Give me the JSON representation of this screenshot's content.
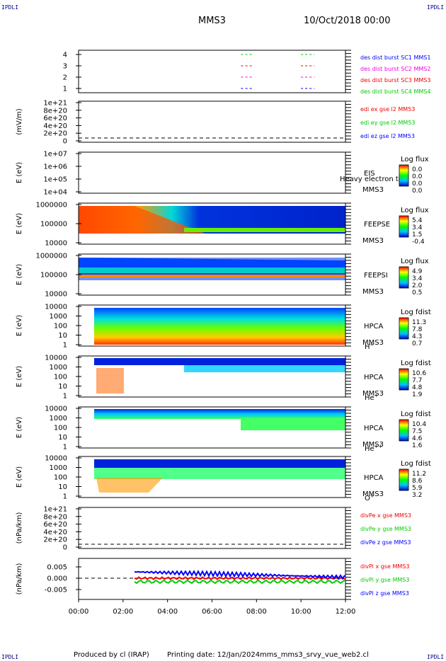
{
  "header": {
    "spacecraft": "MMS3",
    "date": "10/Oct/2018 00:00"
  },
  "corner_label": "IPDLI",
  "footer": {
    "produced_by": "Produced by cl (IRAP)",
    "printing_date": "Printing date: 12/Jan/2024",
    "filename": "mms_mms3_srvy_vue_web2.cl"
  },
  "chart_data": {
    "type": "multi-panel time series and spectrograms",
    "x_axis": {
      "range": [
        "00:00",
        "12:00"
      ],
      "ticks": [
        "00:00",
        "02:00",
        "04:00",
        "06:00",
        "08:00",
        "10:00",
        "12:00"
      ]
    },
    "panels": [
      {
        "id": "burst",
        "type": "scatter",
        "ylim": [
          0.5,
          4.5
        ],
        "yticks": [
          "4",
          "3",
          "2",
          "1"
        ],
        "series": [
          {
            "name": "des dist burst SC1 MMS1",
            "color": "#0000ff",
            "y": 1
          },
          {
            "name": "des dist burst SC2 MMS2",
            "color": "#ee00ee",
            "y": 2
          },
          {
            "name": "des dist burst SC3 MMS3",
            "color": "#ee0000",
            "y": 3
          },
          {
            "name": "des dist burst SC4 MMS4",
            "color": "#00cc00",
            "y": 4
          }
        ],
        "intervals_hours": [
          [
            7.3,
            7.4
          ],
          [
            7.5,
            7.8
          ],
          [
            10.0,
            10.6
          ]
        ]
      },
      {
        "id": "edi",
        "type": "line",
        "ylabel": "(mV/m)",
        "yticks": [
          "1e+21",
          "8e+20",
          "6e+20",
          "4e+20",
          "2e+20",
          "0"
        ],
        "series": [
          {
            "name": "edi ex gse l2 MM53",
            "color": "#ee0000"
          },
          {
            "name": "edi ey gse l2 MM53",
            "color": "#00cc00"
          },
          {
            "name": "edi ez gse l2 MM53",
            "color": "#0000ff"
          }
        ]
      },
      {
        "id": "eis",
        "type": "heatmap",
        "ylabel": "E (eV)",
        "yticks": [
          "1e+07",
          "1e+06",
          "1e+05",
          "1e+04"
        ],
        "labels": [
          "EIS",
          "MMS3"
        ],
        "overlay_text": "Heavy electron to",
        "colorbar": {
          "title": "Log flux",
          "ticks": [
            "0.0",
            "0.0",
            "0.0",
            "0.0"
          ]
        }
      },
      {
        "id": "feepse",
        "type": "heatmap",
        "ylabel": "E (eV)",
        "yticks": [
          "1000000",
          "100000",
          "10000"
        ],
        "labels": [
          "FEEPSE",
          "MMS3"
        ],
        "colorbar": {
          "title": "Log flux",
          "ticks": [
            "5.4",
            "3.4",
            "1.5",
            "-0.4"
          ]
        }
      },
      {
        "id": "feepsi",
        "type": "heatmap",
        "ylabel": "E (eV)",
        "yticks": [
          "1000000",
          "100000",
          "10000"
        ],
        "labels": [
          "FEEPSI",
          "MMS3"
        ],
        "colorbar": {
          "title": "Log flux",
          "ticks": [
            "4.9",
            "3.4",
            "2.0",
            "0.5"
          ]
        }
      },
      {
        "id": "hpca-h",
        "type": "heatmap",
        "ylabel": "E (eV)",
        "yticks": [
          "10000",
          "1000",
          "100",
          "10",
          "1"
        ],
        "labels": [
          "HPCA",
          "MMS3"
        ],
        "species": "H",
        "species_sup": "+",
        "colorbar": {
          "title": "Log fdist",
          "ticks": [
            "11.3",
            "7.8",
            "4.3",
            "0.7"
          ]
        }
      },
      {
        "id": "hpca-he",
        "type": "heatmap",
        "ylabel": "E (eV)",
        "yticks": [
          "10000",
          "1000",
          "100",
          "10",
          "1"
        ],
        "labels": [
          "HPCA",
          "MMS3"
        ],
        "species": "He",
        "species_sup": "+",
        "colorbar": {
          "title": "Log fdist",
          "ticks": [
            "10.6",
            "7.7",
            "4.8",
            "1.9"
          ]
        }
      },
      {
        "id": "hpca-hepp",
        "type": "heatmap",
        "ylabel": "E (eV)",
        "yticks": [
          "10000",
          "1000",
          "100",
          "10",
          "1"
        ],
        "labels": [
          "HPCA",
          "MMS3"
        ],
        "species": "He",
        "species_sup": "++",
        "colorbar": {
          "title": "Log fdist",
          "ticks": [
            "10.4",
            "7.5",
            "4.6",
            "1.6"
          ]
        }
      },
      {
        "id": "hpca-o",
        "type": "heatmap",
        "ylabel": "E (eV)",
        "yticks": [
          "10000",
          "1000",
          "100",
          "10",
          "1"
        ],
        "labels": [
          "HPCA",
          "MMS3"
        ],
        "species": "O",
        "species_sup": "+",
        "colorbar": {
          "title": "Log fdist",
          "ticks": [
            "11.2",
            "8.6",
            "5.9",
            "3.2"
          ]
        }
      },
      {
        "id": "divpe",
        "type": "line",
        "ylabel": "(nPa/km)",
        "yticks": [
          "1e+21",
          "8e+20",
          "6e+20",
          "4e+20",
          "2e+20",
          "0"
        ],
        "series": [
          {
            "name": "divPe x gse MMS3",
            "color": "#ee0000"
          },
          {
            "name": "divPe y gse MMS3",
            "color": "#00cc00"
          },
          {
            "name": "divPe z gse MMS3",
            "color": "#0000ff"
          }
        ]
      },
      {
        "id": "divpi",
        "type": "line",
        "ylabel": "(nPa/km)",
        "ylim": [
          -0.008,
          0.008
        ],
        "yticks": [
          "0.005",
          "0.000",
          "-0.005"
        ],
        "series": [
          {
            "name": "divPi x gse MMS3",
            "color": "#ee0000"
          },
          {
            "name": "divPi y gse MMS3",
            "color": "#00cc00"
          },
          {
            "name": "divPi z gse MMS3",
            "color": "#0000ff"
          }
        ]
      }
    ]
  }
}
